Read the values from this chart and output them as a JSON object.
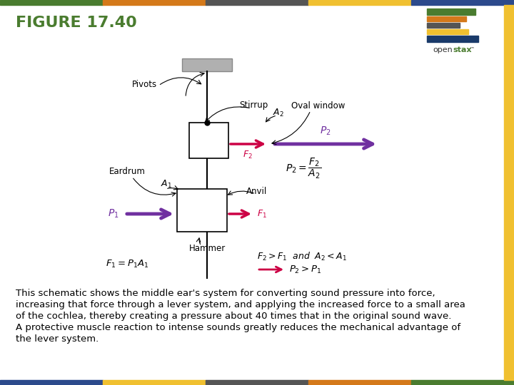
{
  "title": "FIGURE 17.40",
  "title_color": "#4a7c2f",
  "title_fontsize": 16,
  "bg_color": "#ffffff",
  "top_bar_colors": [
    "#4a7c2f",
    "#d4791a",
    "#555555",
    "#f0c030",
    "#2c4a8c"
  ],
  "bottom_bar_colors": [
    "#2c4a8c",
    "#f0c030",
    "#555555",
    "#d4791a",
    "#4a7c2f"
  ],
  "caption_line1": "This schematic shows the middle ear's system for converting sound pressure into force,",
  "caption_line2": "increasing that force through a lever system, and applying the increased force to a small area",
  "caption_line3": "of the cochlea, thereby creating a pressure about 40 times that in the original sound wave.",
  "caption_line4": "A protective muscle reaction to intense sounds greatly reduces the mechanical advantage of",
  "caption_line5": "the lever system.",
  "caption_fontsize": 9.5,
  "arrow_red": "#cc0044",
  "arrow_purple": "#7030a0",
  "right_bar_color": "#f0c030"
}
